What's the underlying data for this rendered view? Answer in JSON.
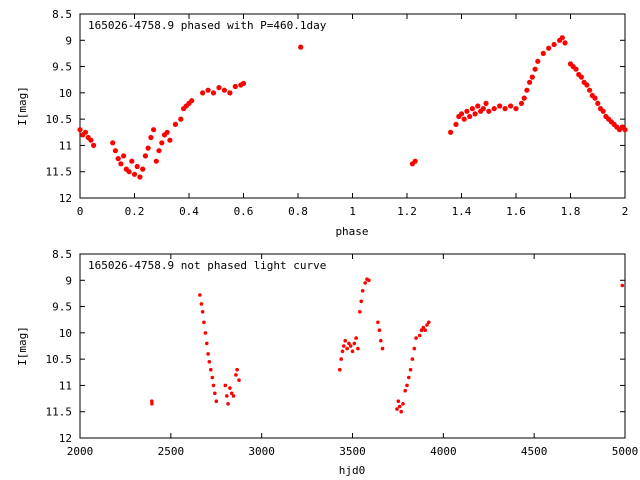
{
  "chart_data": [
    {
      "type": "scatter",
      "title": "165026-4758.9 phased with P=460.1day",
      "xlabel": "phase",
      "ylabel": "I[mag]",
      "xlim": [
        0,
        2
      ],
      "ylim": [
        12,
        8.5
      ],
      "y_inverted": true,
      "grid": false,
      "marker_color": "#ff0000",
      "xticks": [
        "0",
        "0.2",
        "0.4",
        "0.6",
        "0.8",
        "1",
        "1.2",
        "1.4",
        "1.6",
        "1.8",
        "2"
      ],
      "yticks": [
        "8.5",
        "9",
        "9.5",
        "10",
        "10.5",
        "11",
        "11.5",
        "12"
      ],
      "xtick_values": [
        0,
        0.2,
        0.4,
        0.6,
        0.8,
        1.0,
        1.2,
        1.4,
        1.6,
        1.8,
        2.0
      ],
      "ytick_values": [
        8.5,
        9,
        9.5,
        10,
        10.5,
        11,
        11.5,
        12
      ],
      "series": [
        {
          "points": [
            [
              0.0,
              10.7
            ],
            [
              0.01,
              10.8
            ],
            [
              0.02,
              10.75
            ],
            [
              0.03,
              10.85
            ],
            [
              0.04,
              10.9
            ],
            [
              0.05,
              11.0
            ],
            [
              0.12,
              10.95
            ],
            [
              0.13,
              11.1
            ],
            [
              0.14,
              11.25
            ],
            [
              0.15,
              11.35
            ],
            [
              0.16,
              11.2
            ],
            [
              0.17,
              11.45
            ],
            [
              0.18,
              11.5
            ],
            [
              0.19,
              11.3
            ],
            [
              0.2,
              11.55
            ],
            [
              0.21,
              11.4
            ],
            [
              0.22,
              11.6
            ],
            [
              0.23,
              11.45
            ],
            [
              0.24,
              11.2
            ],
            [
              0.25,
              11.05
            ],
            [
              0.26,
              10.85
            ],
            [
              0.27,
              10.7
            ],
            [
              0.28,
              11.3
            ],
            [
              0.29,
              11.1
            ],
            [
              0.3,
              10.95
            ],
            [
              0.31,
              10.8
            ],
            [
              0.32,
              10.75
            ],
            [
              0.33,
              10.9
            ],
            [
              0.35,
              10.6
            ],
            [
              0.37,
              10.5
            ],
            [
              0.38,
              10.3
            ],
            [
              0.39,
              10.25
            ],
            [
              0.4,
              10.2
            ],
            [
              0.41,
              10.15
            ],
            [
              0.45,
              10.0
            ],
            [
              0.47,
              9.95
            ],
            [
              0.49,
              10.0
            ],
            [
              0.51,
              9.9
            ],
            [
              0.53,
              9.95
            ],
            [
              0.55,
              10.0
            ],
            [
              0.57,
              9.88
            ],
            [
              0.59,
              9.85
            ],
            [
              0.6,
              9.82
            ],
            [
              0.81,
              9.13
            ],
            [
              1.22,
              11.35
            ],
            [
              1.23,
              11.3
            ],
            [
              1.36,
              10.75
            ],
            [
              1.38,
              10.6
            ],
            [
              1.39,
              10.45
            ],
            [
              1.4,
              10.4
            ],
            [
              1.41,
              10.5
            ],
            [
              1.42,
              10.35
            ],
            [
              1.43,
              10.45
            ],
            [
              1.44,
              10.3
            ],
            [
              1.45,
              10.4
            ],
            [
              1.46,
              10.25
            ],
            [
              1.47,
              10.35
            ],
            [
              1.48,
              10.3
            ],
            [
              1.49,
              10.2
            ],
            [
              1.5,
              10.35
            ],
            [
              1.52,
              10.3
            ],
            [
              1.54,
              10.25
            ],
            [
              1.56,
              10.3
            ],
            [
              1.58,
              10.25
            ],
            [
              1.6,
              10.3
            ],
            [
              1.62,
              10.2
            ],
            [
              1.63,
              10.1
            ],
            [
              1.64,
              9.95
            ],
            [
              1.65,
              9.8
            ],
            [
              1.66,
              9.7
            ],
            [
              1.67,
              9.55
            ],
            [
              1.68,
              9.4
            ],
            [
              1.7,
              9.25
            ],
            [
              1.72,
              9.15
            ],
            [
              1.74,
              9.08
            ],
            [
              1.76,
              9.0
            ],
            [
              1.77,
              8.95
            ],
            [
              1.78,
              9.05
            ],
            [
              1.8,
              9.45
            ],
            [
              1.81,
              9.5
            ],
            [
              1.82,
              9.55
            ],
            [
              1.83,
              9.65
            ],
            [
              1.84,
              9.7
            ],
            [
              1.85,
              9.8
            ],
            [
              1.86,
              9.85
            ],
            [
              1.87,
              9.95
            ],
            [
              1.88,
              10.05
            ],
            [
              1.89,
              10.1
            ],
            [
              1.9,
              10.2
            ],
            [
              1.91,
              10.3
            ],
            [
              1.92,
              10.35
            ],
            [
              1.93,
              10.45
            ],
            [
              1.94,
              10.5
            ],
            [
              1.95,
              10.55
            ],
            [
              1.96,
              10.6
            ],
            [
              1.97,
              10.65
            ],
            [
              1.98,
              10.7
            ],
            [
              1.99,
              10.65
            ],
            [
              2.0,
              10.7
            ]
          ]
        }
      ]
    },
    {
      "type": "scatter",
      "title": "165026-4758.9 not phased light curve",
      "xlabel": "hjd0",
      "ylabel": "I[mag]",
      "xlim": [
        2000,
        5000
      ],
      "ylim": [
        12,
        8.5
      ],
      "y_inverted": true,
      "grid": false,
      "marker_color": "#ff0000",
      "xticks": [
        "2000",
        "2500",
        "3000",
        "3500",
        "4000",
        "4500",
        "5000"
      ],
      "yticks": [
        "8.5",
        "9",
        "9.5",
        "10",
        "10.5",
        "11",
        "11.5",
        "12"
      ],
      "xtick_values": [
        2000,
        2500,
        3000,
        3500,
        4000,
        4500,
        5000
      ],
      "ytick_values": [
        8.5,
        9,
        9.5,
        10,
        10.5,
        11,
        11.5,
        12
      ],
      "series": [
        {
          "points": [
            [
              2395,
              11.3
            ],
            [
              2396,
              11.35
            ],
            [
              2660,
              9.28
            ],
            [
              2668,
              9.45
            ],
            [
              2675,
              9.6
            ],
            [
              2682,
              9.8
            ],
            [
              2690,
              10.0
            ],
            [
              2698,
              10.2
            ],
            [
              2705,
              10.4
            ],
            [
              2712,
              10.55
            ],
            [
              2720,
              10.7
            ],
            [
              2728,
              10.85
            ],
            [
              2735,
              11.0
            ],
            [
              2742,
              11.15
            ],
            [
              2750,
              11.3
            ],
            [
              2800,
              11.0
            ],
            [
              2808,
              11.2
            ],
            [
              2815,
              11.35
            ],
            [
              2825,
              11.05
            ],
            [
              2835,
              11.15
            ],
            [
              2845,
              11.2
            ],
            [
              2858,
              10.8
            ],
            [
              2865,
              10.7
            ],
            [
              2875,
              10.9
            ],
            [
              3430,
              10.7
            ],
            [
              3438,
              10.5
            ],
            [
              3445,
              10.35
            ],
            [
              3452,
              10.25
            ],
            [
              3460,
              10.15
            ],
            [
              3470,
              10.3
            ],
            [
              3480,
              10.2
            ],
            [
              3490,
              10.25
            ],
            [
              3500,
              10.35
            ],
            [
              3510,
              10.2
            ],
            [
              3520,
              10.1
            ],
            [
              3530,
              10.3
            ],
            [
              3540,
              9.6
            ],
            [
              3548,
              9.4
            ],
            [
              3556,
              9.2
            ],
            [
              3570,
              9.05
            ],
            [
              3580,
              8.98
            ],
            [
              3590,
              9.0
            ],
            [
              3640,
              9.8
            ],
            [
              3648,
              9.95
            ],
            [
              3656,
              10.15
            ],
            [
              3665,
              10.3
            ],
            [
              3745,
              11.45
            ],
            [
              3752,
              11.3
            ],
            [
              3760,
              11.4
            ],
            [
              3768,
              11.5
            ],
            [
              3778,
              11.35
            ],
            [
              3790,
              11.1
            ],
            [
              3800,
              11.0
            ],
            [
              3810,
              10.85
            ],
            [
              3820,
              10.7
            ],
            [
              3830,
              10.5
            ],
            [
              3840,
              10.3
            ],
            [
              3850,
              10.1
            ],
            [
              3870,
              10.05
            ],
            [
              3880,
              9.95
            ],
            [
              3890,
              9.9
            ],
            [
              3900,
              9.95
            ],
            [
              3910,
              9.85
            ],
            [
              3920,
              9.8
            ],
            [
              4985,
              9.1
            ]
          ]
        }
      ]
    }
  ]
}
